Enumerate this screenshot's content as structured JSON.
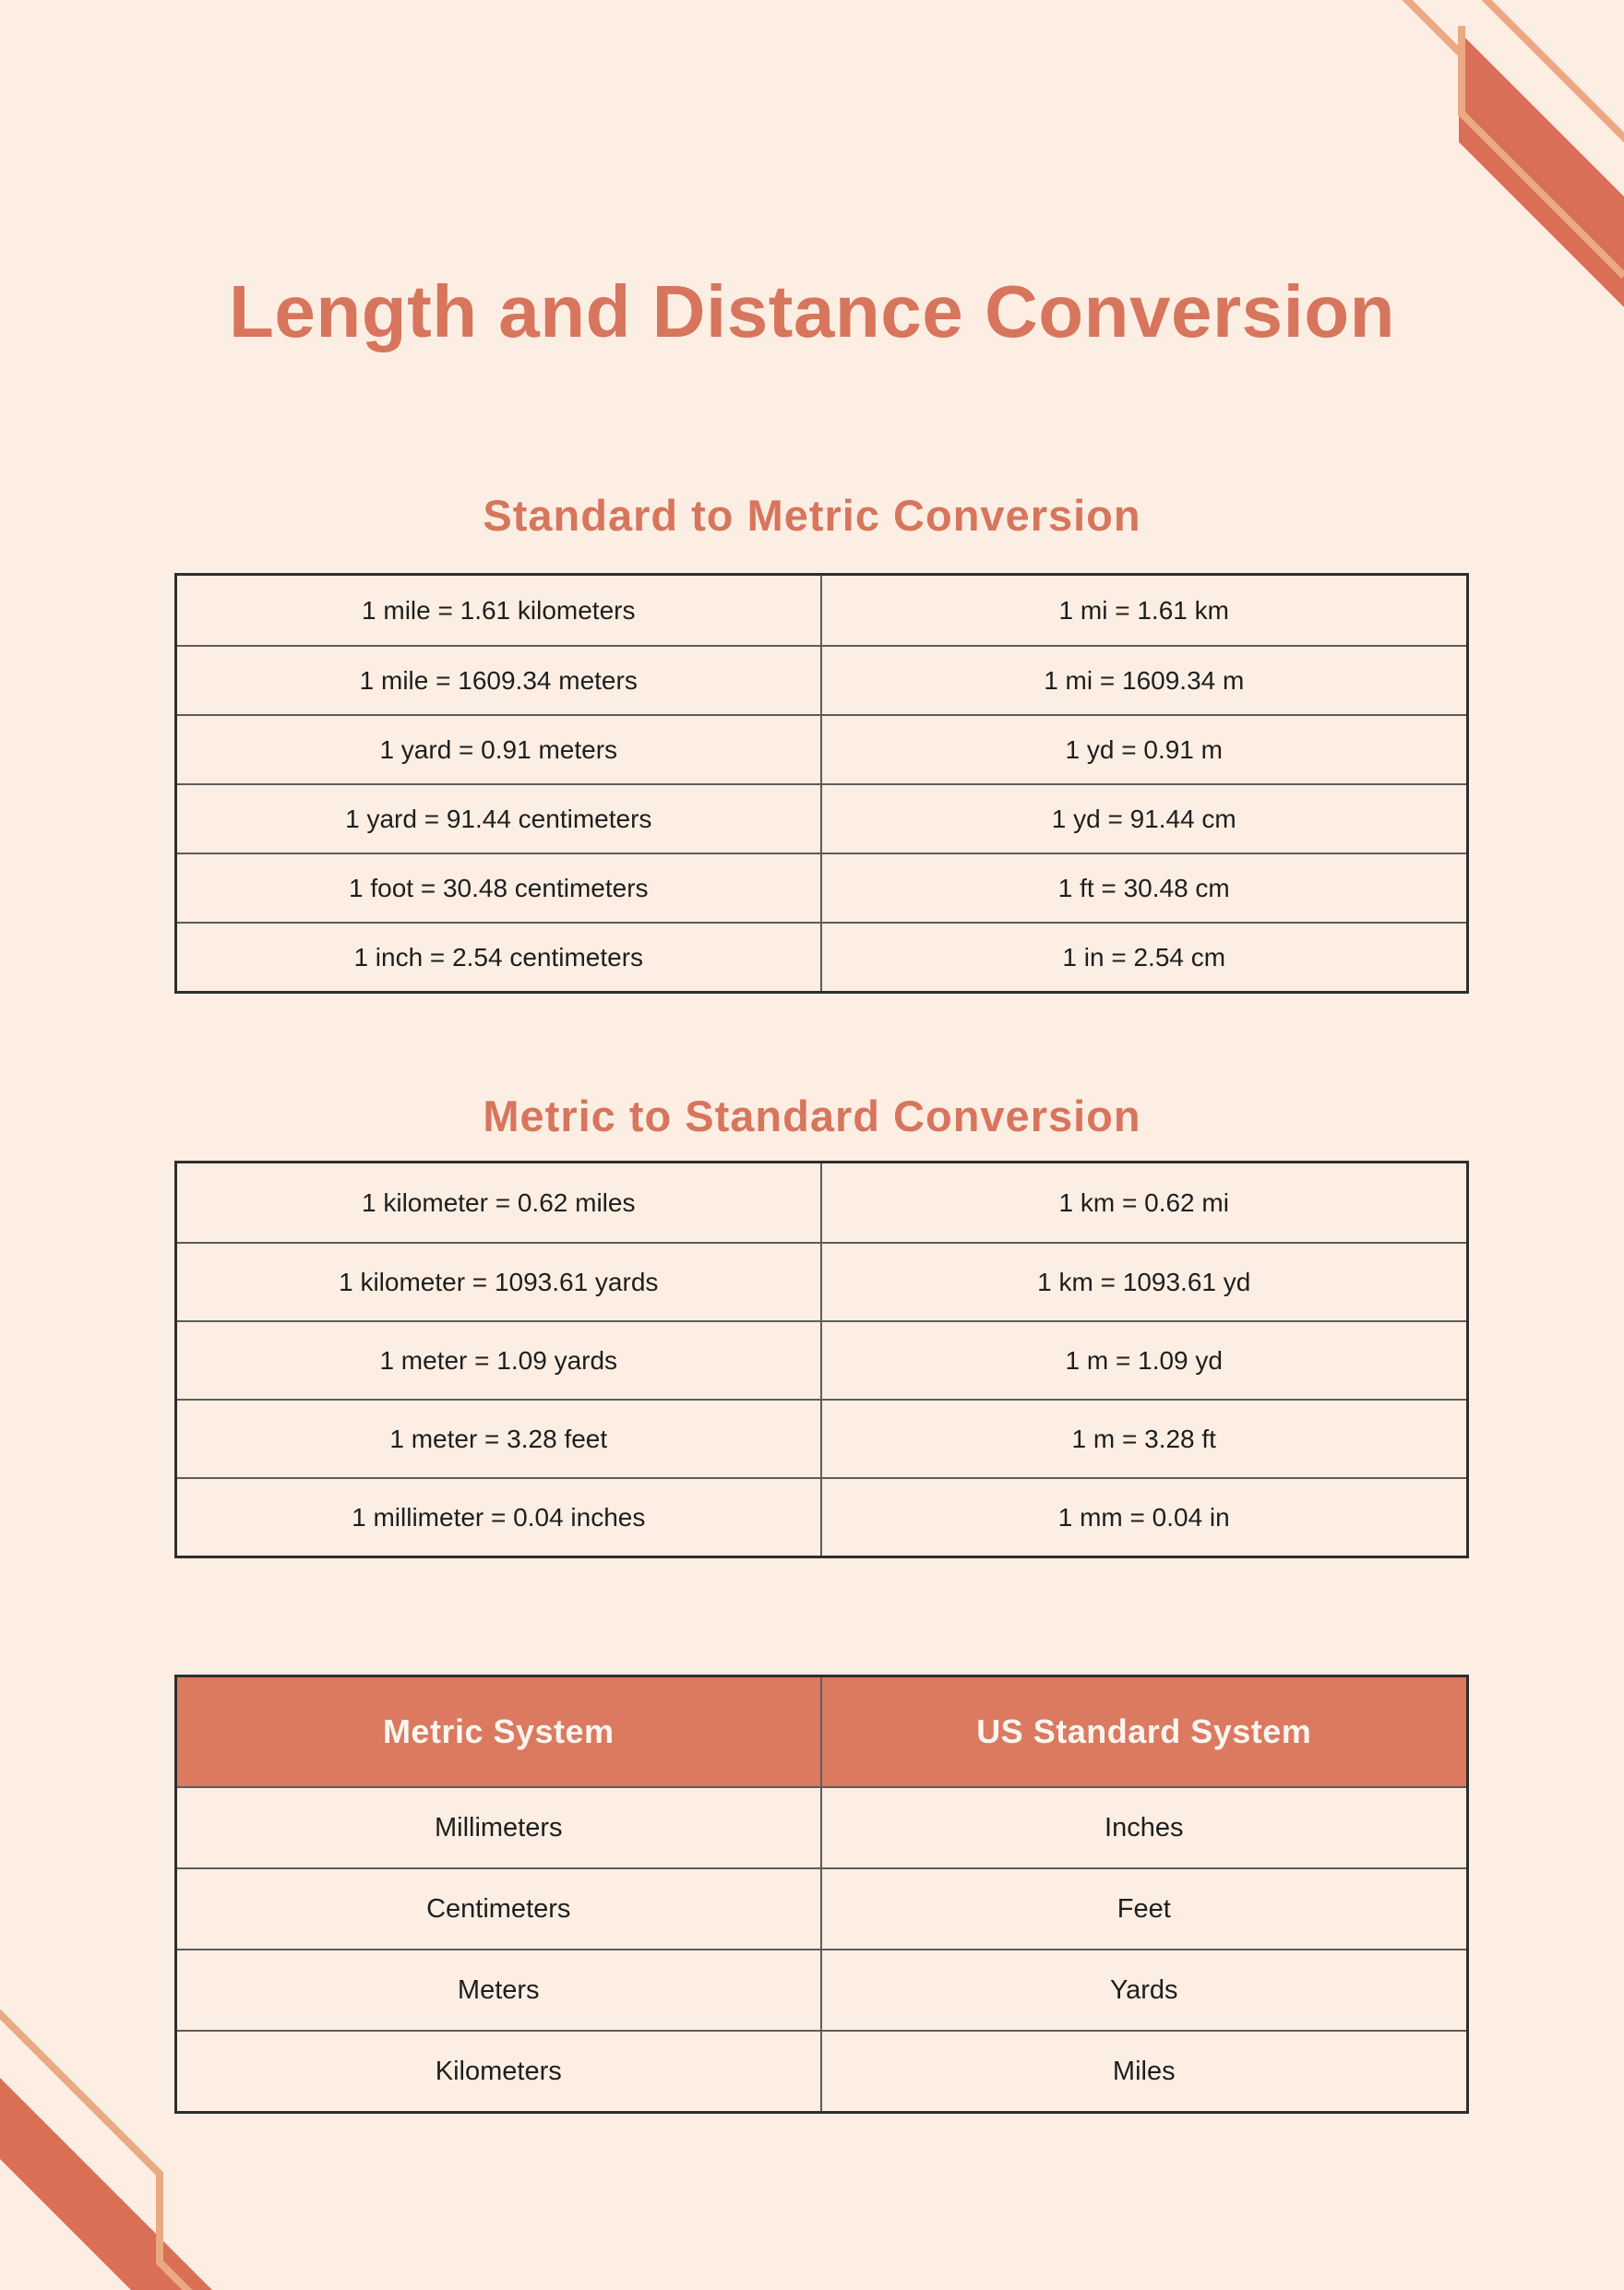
{
  "page_title": "Length and Distance Conversion",
  "sections": [
    {
      "heading": "Standard to Metric Conversion",
      "rows": [
        [
          "1 mile = 1.61 kilometers",
          "1 mi = 1.61 km"
        ],
        [
          "1 mile = 1609.34 meters",
          "1 mi = 1609.34 m"
        ],
        [
          "1 yard = 0.91 meters",
          "1 yd = 0.91 m"
        ],
        [
          "1 yard = 91.44 centimeters",
          "1 yd = 91.44 cm"
        ],
        [
          "1 foot = 30.48 centimeters",
          "1 ft = 30.48 cm"
        ],
        [
          "1 inch = 2.54 centimeters",
          "1 in = 2.54 cm"
        ]
      ]
    },
    {
      "heading": "Metric to Standard Conversion",
      "rows": [
        [
          "1 kilometer = 0.62 miles",
          "1 km = 0.62 mi"
        ],
        [
          "1 kilometer = 1093.61 yards",
          "1 km = 1093.61 yd"
        ],
        [
          "1 meter = 1.09 yards",
          "1 m = 1.09 yd"
        ],
        [
          "1 meter = 3.28 feet",
          "1 m = 3.28 ft"
        ],
        [
          "1 millimeter = 0.04 inches",
          "1 mm = 0.04 in"
        ]
      ]
    }
  ],
  "system_table": {
    "headers": [
      "Metric System",
      "US Standard System"
    ],
    "rows": [
      [
        "Millimeters",
        "Inches"
      ],
      [
        "Centimeters",
        "Feet"
      ],
      [
        "Meters",
        "Yards"
      ],
      [
        "Kilometers",
        "Miles"
      ]
    ]
  },
  "colors": {
    "background": "#fdeee3",
    "accent_salmon": "#d7755d",
    "table_header_bg": "#db7961",
    "ribbon_salmon": "#d96f57",
    "ribbon_peach": "#eaa982",
    "table_border": "#2e2e2e",
    "inner_line": "#5c5c5c",
    "text_dark": "#1e1e1e",
    "header_text": "#fdf6ef"
  }
}
